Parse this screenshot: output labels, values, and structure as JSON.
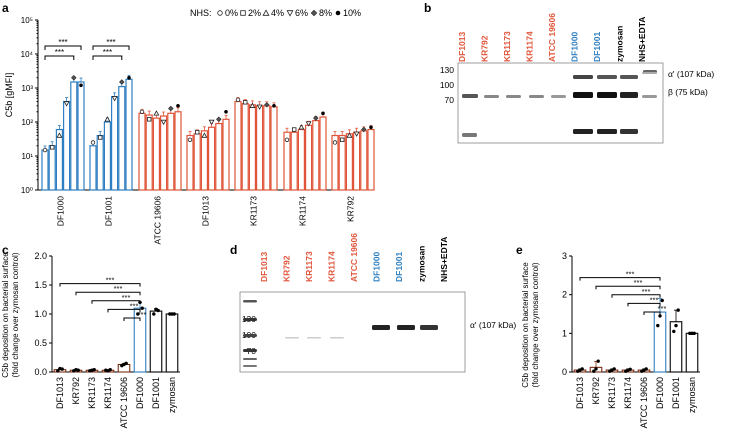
{
  "colors": {
    "blue": "#2e7fc1",
    "red": "#e0553a",
    "dark_red": "#7a2d12",
    "black": "#000000"
  },
  "panels": {
    "a": "a",
    "b": "b",
    "c": "c",
    "d": "d",
    "e": "e"
  },
  "nhs_legend": {
    "title": "NHS:",
    "items": [
      {
        "label": "0%",
        "icon": "open-circle-icon"
      },
      {
        "label": "2%",
        "icon": "open-square-icon"
      },
      {
        "label": "4%",
        "icon": "open-triangle-up-icon"
      },
      {
        "label": "6%",
        "icon": "open-triangle-down-icon"
      },
      {
        "label": "8%",
        "icon": "diamond-icon"
      },
      {
        "label": "10%",
        "icon": "filled-circle-icon"
      }
    ]
  },
  "chart_data": [
    {
      "panel": "a",
      "type": "bar",
      "ylabel": "C5b [gMFI]",
      "yscale": "log",
      "ylim": [
        1,
        100000
      ],
      "yticks": [
        "10⁰",
        "10¹",
        "10²",
        "10³",
        "10⁴",
        "10⁵"
      ],
      "sig": "***",
      "groups": [
        {
          "name": "DF1000",
          "color": "blue",
          "values": [
            15,
            20,
            60,
            400,
            1500,
            1500
          ],
          "points": [
            15,
            18,
            40,
            350,
            2000,
            1200
          ]
        },
        {
          "name": "DF1001",
          "color": "blue",
          "values": [
            20,
            40,
            100,
            550,
            1100,
            1800
          ],
          "points": [
            25,
            35,
            120,
            500,
            1500,
            2000
          ]
        },
        {
          "name": "ATCC 19606",
          "color": "red",
          "values": [
            180,
            160,
            130,
            150,
            180,
            200
          ],
          "points": [
            200,
            120,
            180,
            100,
            250,
            300
          ]
        },
        {
          "name": "DF1013",
          "color": "red",
          "values": [
            40,
            45,
            55,
            70,
            90,
            120
          ],
          "points": [
            30,
            50,
            40,
            100,
            120,
            200
          ]
        },
        {
          "name": "KR1173",
          "color": "red",
          "values": [
            400,
            350,
            320,
            300,
            300,
            280
          ],
          "points": [
            450,
            380,
            300,
            280,
            320,
            300
          ]
        },
        {
          "name": "KR1174",
          "color": "red",
          "values": [
            50,
            50,
            60,
            80,
            110,
            140
          ],
          "points": [
            30,
            60,
            70,
            90,
            130,
            180
          ]
        },
        {
          "name": "KR792",
          "color": "red",
          "values": [
            40,
            40,
            45,
            50,
            55,
            60
          ],
          "points": [
            25,
            30,
            40,
            45,
            60,
            70
          ]
        }
      ]
    },
    {
      "panel": "c",
      "type": "bar",
      "ylabel_line1": "C5b deposition on bacterial surface",
      "ylabel_line2": "(fold change over zymosan control)",
      "ylim": [
        0,
        2.0
      ],
      "yticks": [
        "0.0",
        "0.5",
        "1.0",
        "1.5",
        "2.0"
      ],
      "categories": [
        "DF1013",
        "KR792",
        "KR1173",
        "KR1174",
        "ATCC 19606",
        "DF1000",
        "DF1001",
        "zymosan"
      ],
      "values": [
        0.04,
        0.03,
        0.03,
        0.03,
        0.13,
        1.1,
        1.05,
        1.0
      ],
      "errors": [
        0.02,
        0.01,
        0.01,
        0.01,
        0.02,
        0.1,
        0.04,
        0.0
      ],
      "bar_colors": [
        "dark_red",
        "dark_red",
        "dark_red",
        "dark_red",
        "dark_red",
        "blue",
        "black",
        "black"
      ],
      "points": [
        [
          0.02,
          0.06,
          0.05
        ],
        [
          0.02,
          0.04,
          0.03
        ],
        [
          0.02,
          0.03,
          0.04
        ],
        [
          0.03,
          0.02,
          0.04
        ],
        [
          0.11,
          0.13,
          0.15
        ],
        [
          1.0,
          1.2,
          1.1
        ],
        [
          1.0,
          1.08,
          1.06
        ],
        [
          1.0,
          1.0,
          1.0
        ]
      ],
      "sig": "***"
    },
    {
      "panel": "e",
      "type": "bar",
      "ylabel_line1": "C5b deposition on bacterial surface",
      "ylabel_line2": "(fold change over zymosan control)",
      "ylim": [
        0,
        3
      ],
      "yticks": [
        "0",
        "1",
        "2",
        "3"
      ],
      "categories": [
        "DF1013",
        "KR792",
        "KR1173",
        "KR1174",
        "ATCC 19606",
        "DF1000",
        "DF1001",
        "zymosan"
      ],
      "values": [
        0.05,
        0.12,
        0.05,
        0.05,
        0.05,
        1.55,
        1.3,
        1.0
      ],
      "errors": [
        0.03,
        0.15,
        0.03,
        0.03,
        0.03,
        0.35,
        0.3,
        0.0
      ],
      "bar_colors": [
        "dark_red",
        "dark_red",
        "dark_red",
        "dark_red",
        "dark_red",
        "blue",
        "black",
        "black"
      ],
      "points": [
        [
          0.02,
          0.05,
          0.08
        ],
        [
          0.02,
          0.08,
          0.28
        ],
        [
          0.02,
          0.05,
          0.08
        ],
        [
          0.02,
          0.05,
          0.07
        ],
        [
          0.02,
          0.05,
          0.08
        ],
        [
          1.2,
          1.45,
          1.85
        ],
        [
          1.05,
          1.2,
          1.6
        ],
        [
          1.0,
          1.0,
          1.0
        ]
      ],
      "sig": "***"
    }
  ],
  "blot_b": {
    "lanes": [
      {
        "label": "DF1013",
        "color": "red"
      },
      {
        "label": "KR792",
        "color": "red"
      },
      {
        "label": "KR1173",
        "color": "red"
      },
      {
        "label": "KR1174",
        "color": "red"
      },
      {
        "label": "ATCC 19606",
        "color": "red"
      },
      {
        "label": "DF1000",
        "color": "blue"
      },
      {
        "label": "DF1001",
        "color": "blue"
      },
      {
        "label": "zymosan",
        "color": "black"
      },
      {
        "label": "NHS+EDTA",
        "color": "black"
      }
    ],
    "markers": [
      "130",
      "100",
      "70"
    ],
    "band_labels": [
      "α' (107 kDa)",
      "β (75 kDa)"
    ]
  },
  "blot_d": {
    "lanes": [
      {
        "label": "DF1013",
        "color": "red"
      },
      {
        "label": "KR792",
        "color": "red"
      },
      {
        "label": "KR1173",
        "color": "red"
      },
      {
        "label": "KR1174",
        "color": "red"
      },
      {
        "label": "ATCC 19606",
        "color": "red"
      },
      {
        "label": "DF1000",
        "color": "blue"
      },
      {
        "label": "DF1001",
        "color": "blue"
      },
      {
        "label": "zymosan",
        "color": "black"
      },
      {
        "label": "NHS+EDTA",
        "color": "black"
      }
    ],
    "markers": [
      "130",
      "100",
      "70"
    ],
    "band_labels": [
      "α' (107 kDa)"
    ]
  }
}
